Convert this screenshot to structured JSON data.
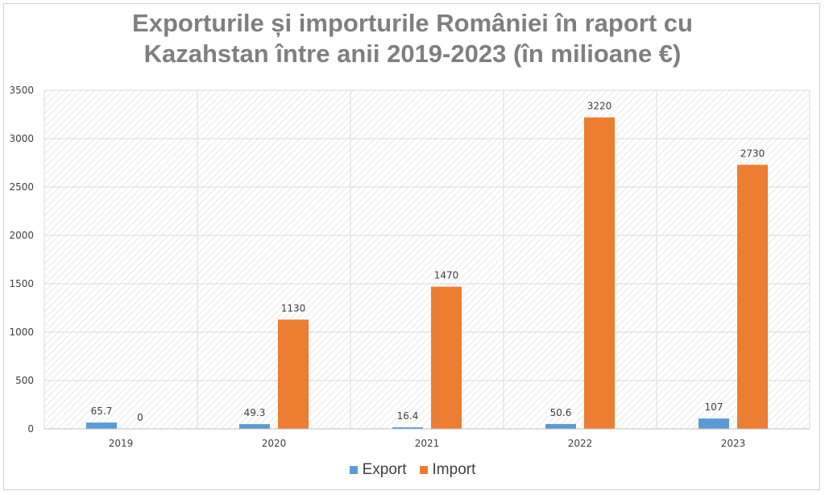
{
  "chart_data": {
    "type": "bar",
    "title_lines": [
      "Exporturile și importurile României în raport cu",
      "Kazahstan între anii 2019-2023 (în milioane €)"
    ],
    "categories": [
      "2019",
      "2020",
      "2021",
      "2022",
      "2023"
    ],
    "series": [
      {
        "name": "Export",
        "values": [
          65.7,
          49.3,
          16.4,
          50.6,
          107
        ],
        "labels": [
          "65.7",
          "49.3",
          "16.4",
          "50.6",
          "107"
        ],
        "color": "#5b9bd5"
      },
      {
        "name": "Import",
        "values": [
          0,
          1130,
          1470,
          3220,
          2730
        ],
        "labels": [
          "0",
          "1130",
          "1470",
          "3220",
          "2730"
        ],
        "color": "#ed7d31"
      }
    ],
    "ylim": [
      0,
      3500
    ],
    "yticks": [
      "0",
      "500",
      "1000",
      "1500",
      "2000",
      "2500",
      "3000",
      "3500"
    ],
    "grid": true,
    "legend_position": "bottom"
  }
}
